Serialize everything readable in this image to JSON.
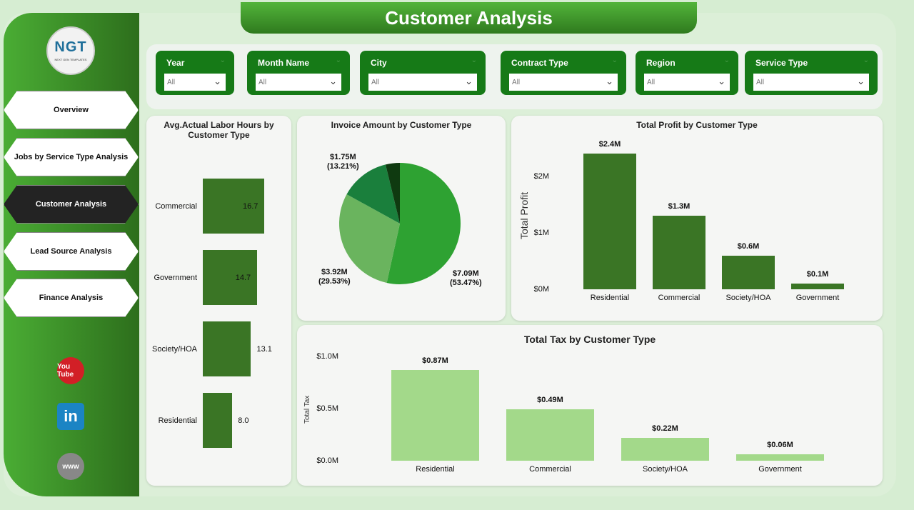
{
  "title": "Customer Analysis",
  "logo": {
    "text": "NGT",
    "subtext": "NEXT GEN TEMPLATES"
  },
  "nav": [
    {
      "label": "Overview"
    },
    {
      "label": "Jobs by Service Type Analysis"
    },
    {
      "label": "Customer Analysis",
      "active": true
    },
    {
      "label": "Lead Source Analysis"
    },
    {
      "label": "Finance Analysis"
    }
  ],
  "social": [
    {
      "icon": "youtube-icon",
      "text": "You Tube"
    },
    {
      "icon": "linkedin-icon",
      "text": "in"
    },
    {
      "icon": "globe-icon",
      "text": "www"
    }
  ],
  "filters": [
    {
      "label": "Year",
      "value": "All"
    },
    {
      "label": "Month Name",
      "value": "All"
    },
    {
      "label": "City",
      "value": "All"
    },
    {
      "label": "Contract Type",
      "value": "All"
    },
    {
      "label": "Region",
      "value": "All"
    },
    {
      "label": "Service Type",
      "value": "All"
    }
  ],
  "colors": {
    "accent": "#167a17",
    "bar_dark": "#3a7525",
    "bar_light": "#a3d98a",
    "pie": [
      "#2ea232",
      "#6ab45e",
      "#1a7f3c",
      "#0f3a10"
    ]
  },
  "chart_data": [
    {
      "type": "bar",
      "orientation": "horizontal",
      "title": "Avg.Actual Labor Hours by Customer Type",
      "categories": [
        "Commercial",
        "Government",
        "Society/HOA",
        "Residential"
      ],
      "values": [
        16.7,
        14.7,
        13.1,
        8.0
      ],
      "labels": [
        "16.7",
        "14.7",
        "13.1",
        "8.0"
      ]
    },
    {
      "type": "pie",
      "title": "Invoice Amount by Customer Type",
      "values": [
        7.09,
        3.92,
        1.75,
        0.5
      ],
      "percents": [
        53.47,
        29.53,
        13.21,
        3.79
      ],
      "labels": [
        "$7.09M",
        "$3.92M",
        "$1.75M",
        ""
      ],
      "pct_labels": [
        "(53.47%)",
        "(29.53%)",
        "(13.21%)",
        ""
      ]
    },
    {
      "type": "bar",
      "title": "Total Profit by Customer Type",
      "ylabel": "Total Profit",
      "categories": [
        "Residential",
        "Commercial",
        "Society/HOA",
        "Government"
      ],
      "values": [
        2.4,
        1.3,
        0.6,
        0.1
      ],
      "labels": [
        "$2.4M",
        "$1.3M",
        "$0.6M",
        "$0.1M"
      ],
      "yticks": [
        "$0M",
        "$1M",
        "$2M"
      ],
      "ylim": [
        0,
        2.5
      ]
    },
    {
      "type": "bar",
      "title": "Total Tax by Customer Type",
      "ylabel": "Total Tax",
      "categories": [
        "Residential",
        "Commercial",
        "Society/HOA",
        "Government"
      ],
      "values": [
        0.87,
        0.49,
        0.22,
        0.06
      ],
      "labels": [
        "$0.87M",
        "$0.49M",
        "$0.22M",
        "$0.06M"
      ],
      "yticks": [
        "$0.0M",
        "$0.5M",
        "$1.0M"
      ],
      "ylim": [
        0,
        1.0
      ]
    }
  ]
}
